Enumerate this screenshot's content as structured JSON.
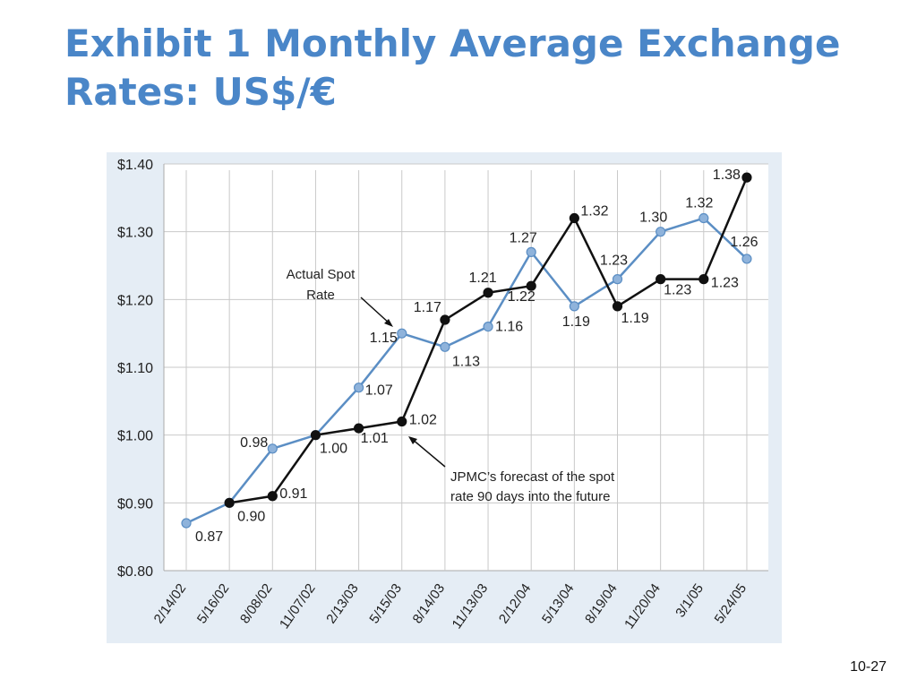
{
  "slide": {
    "title_line1": "Exhibit 1  Monthly Average Exchange",
    "title_line2": "Rates: US$/€",
    "page_number": "10-27"
  },
  "chart_data": {
    "type": "line",
    "categories": [
      "2/14/02",
      "5/16/02",
      "8/08/02",
      "11/07/02",
      "2/13/03",
      "5/15/03",
      "8/14/03",
      "11/13/03",
      "2/12/04",
      "5/13/04",
      "8/19/04",
      "11/20/04",
      "3/1/05",
      "5/24/05"
    ],
    "series": [
      {
        "key": "actual",
        "name": "Actual Spot Rate",
        "color": "#5b8ec4",
        "marker_color": "#8fb3db",
        "values": [
          0.87,
          0.9,
          0.98,
          1.0,
          1.07,
          1.15,
          1.13,
          1.16,
          1.27,
          1.19,
          1.23,
          1.3,
          1.32,
          1.26
        ],
        "labels": [
          "0.87",
          "0.90",
          "0.98",
          "",
          "1.07",
          "1.15",
          "1.13",
          "1.16",
          "1.27",
          "1.19",
          "1.23",
          "1.30",
          "1.32",
          "1.26"
        ]
      },
      {
        "key": "forecast",
        "name": "JPMC’s forecast of the spot rate 90 days into the future",
        "color": "#111111",
        "marker_color": "#111111",
        "values": [
          null,
          0.9,
          0.91,
          1.0,
          1.01,
          1.02,
          1.17,
          1.21,
          1.22,
          1.32,
          1.19,
          1.23,
          1.23,
          1.38
        ],
        "labels": [
          "",
          "",
          "0.91",
          "1.00",
          "1.01",
          "1.02",
          "1.17",
          "1.21",
          "1.22",
          "1.32",
          "1.19",
          "1.23",
          "1.23",
          "1.38"
        ]
      }
    ],
    "y_ticks": [
      "$0.80",
      "$0.90",
      "$1.00",
      "$1.10",
      "$1.20",
      "$1.30",
      "$1.40"
    ],
    "ylim": [
      0.8,
      1.4
    ],
    "grid": true,
    "annotations": {
      "actual_line1": "Actual Spot",
      "actual_line2": "Rate",
      "forecast_line1": "JPMC’s forecast of the spot",
      "forecast_line2": "rate 90 days into the future"
    },
    "colors": {
      "panel_bg": "#e5edf5",
      "grid": "#c9c9c9",
      "plot_bg": "#ffffff"
    }
  }
}
